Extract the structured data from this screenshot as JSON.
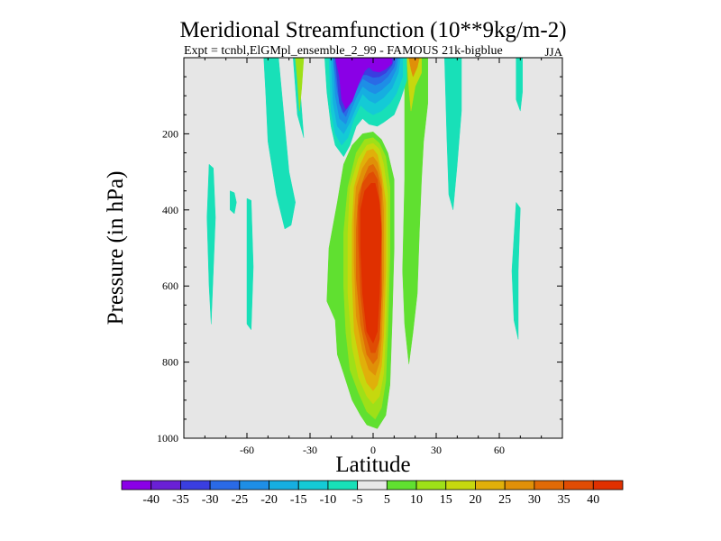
{
  "chart_data": {
    "type": "contour",
    "title": "Meridional Streamfunction (10**9kg/m-2)",
    "subtitle": "Expt = tcnbl,ElGMpl_ensemble_2_99 - FAMOUS 21k-bigblue",
    "season": "JJA",
    "xlabel": "Latitude",
    "ylabel": "Pressure (in hPa)",
    "xlim": [
      -90,
      90
    ],
    "ylim": [
      1000,
      0
    ],
    "x_ticks": [
      -60,
      -30,
      0,
      30,
      60
    ],
    "x_tick_labels": [
      "-60",
      "-30",
      "0",
      "30",
      "60"
    ],
    "y_ticks": [
      200,
      400,
      600,
      800,
      1000
    ],
    "y_tick_labels": [
      "200",
      "400",
      "600",
      "800",
      "1000"
    ],
    "colorbar": {
      "labels": [
        "-40",
        "-35",
        "-30",
        "-25",
        "-20",
        "-15",
        "-10",
        "-5",
        "5",
        "10",
        "15",
        "20",
        "25",
        "30",
        "35",
        "40"
      ],
      "colors": [
        "#8a00e6",
        "#6a20d6",
        "#3a3ee0",
        "#2a6ae6",
        "#1e8ee6",
        "#16aee0",
        "#14cad6",
        "#18e0b8",
        "#e8e8e8",
        "#60e030",
        "#9ee018",
        "#c6d80e",
        "#e0b00a",
        "#e09008",
        "#e06a06",
        "#e04c04",
        "#e03000"
      ]
    },
    "regions": [
      {
        "name": "strong-negative-cell",
        "value": -40,
        "lat_range": [
          -15,
          10
        ],
        "pressure_range": [
          0,
          230
        ]
      },
      {
        "name": "strong-positive-cell",
        "value": 40,
        "lat_range": [
          -8,
          5
        ],
        "pressure_range": [
          300,
          800
        ]
      },
      {
        "name": "positive-envelope",
        "value": 5,
        "lat_range": [
          -15,
          8
        ],
        "pressure_range": [
          200,
          980
        ]
      },
      {
        "name": "weak-negative-band",
        "value": -5,
        "lat_range": [
          -52,
          -40
        ],
        "pressure_range": [
          0,
          450
        ]
      },
      {
        "name": "weak-positive-band",
        "value": 5,
        "lat_range": [
          15,
          25
        ],
        "pressure_range": [
          0,
          800
        ]
      },
      {
        "name": "weak-negative-band",
        "value": -5,
        "lat_range": [
          -78,
          -75
        ],
        "pressure_range": [
          280,
          700
        ]
      },
      {
        "name": "weak-negative-band",
        "value": -5,
        "lat_range": [
          -68,
          -64
        ],
        "pressure_range": [
          350,
          410
        ]
      },
      {
        "name": "weak-negative-band",
        "value": -5,
        "lat_range": [
          -60,
          -58
        ],
        "pressure_range": [
          380,
          720
        ]
      },
      {
        "name": "weak-negative-band",
        "value": -5,
        "lat_range": [
          68,
          72
        ],
        "pressure_range": [
          0,
          140
        ]
      },
      {
        "name": "weak-negative-band",
        "value": -5,
        "lat_range": [
          66,
          70
        ],
        "pressure_range": [
          380,
          740
        ]
      },
      {
        "name": "weak-negative-band",
        "value": -5,
        "lat_range": [
          35,
          42
        ],
        "pressure_range": [
          0,
          400
        ]
      }
    ]
  }
}
